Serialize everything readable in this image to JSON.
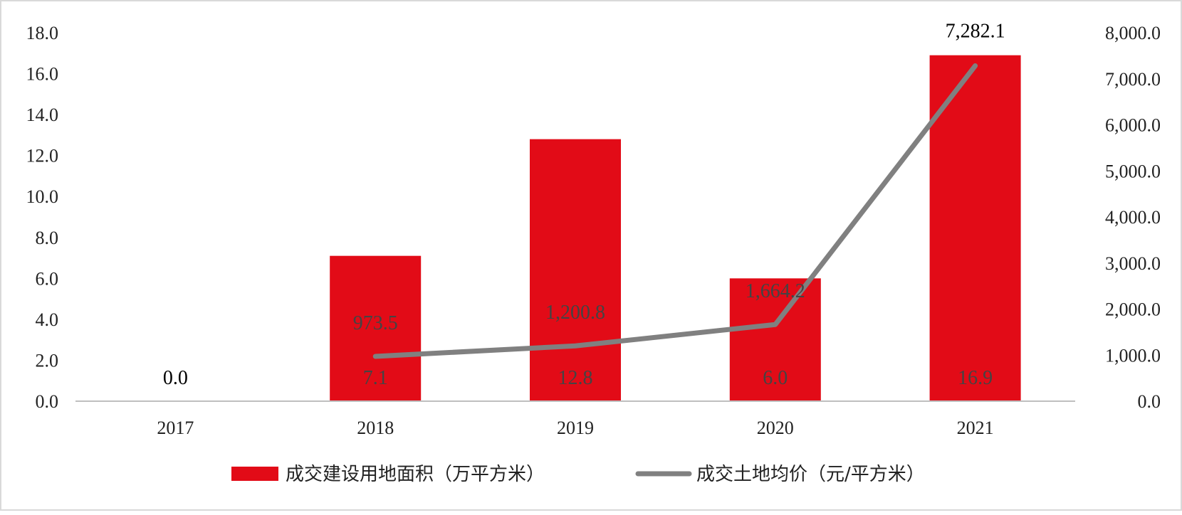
{
  "chart_data": {
    "type": "bar+line",
    "categories": [
      "2017",
      "2018",
      "2019",
      "2020",
      "2021"
    ],
    "series": [
      {
        "name": "成交建设用地面积（万平方米）",
        "type": "bar",
        "axis": "left",
        "values": [
          0.0,
          7.1,
          12.8,
          6.0,
          16.9
        ],
        "labels": [
          "0.0",
          "7.1",
          "12.8",
          "6.0",
          "16.9"
        ],
        "color": "#e20b17"
      },
      {
        "name": "成交土地均价（元/平方米）",
        "type": "line",
        "axis": "right",
        "values": [
          null,
          973.5,
          1200.8,
          1664.2,
          7282.1
        ],
        "labels": [
          "",
          "973.5",
          "1,200.8",
          "1,664.2",
          "7,282.1"
        ],
        "color": "#808080"
      }
    ],
    "y_left": {
      "min": 0,
      "max": 18,
      "ticks": [
        "0.0",
        "2.0",
        "4.0",
        "6.0",
        "8.0",
        "10.0",
        "12.0",
        "14.0",
        "16.0",
        "18.0"
      ]
    },
    "y_right": {
      "min": 0,
      "max": 8000,
      "ticks": [
        "0.0",
        "1,000.0",
        "2,000.0",
        "3,000.0",
        "4,000.0",
        "5,000.0",
        "6,000.0",
        "7,000.0",
        "8,000.0"
      ]
    },
    "grid": false,
    "legend_position": "bottom"
  }
}
